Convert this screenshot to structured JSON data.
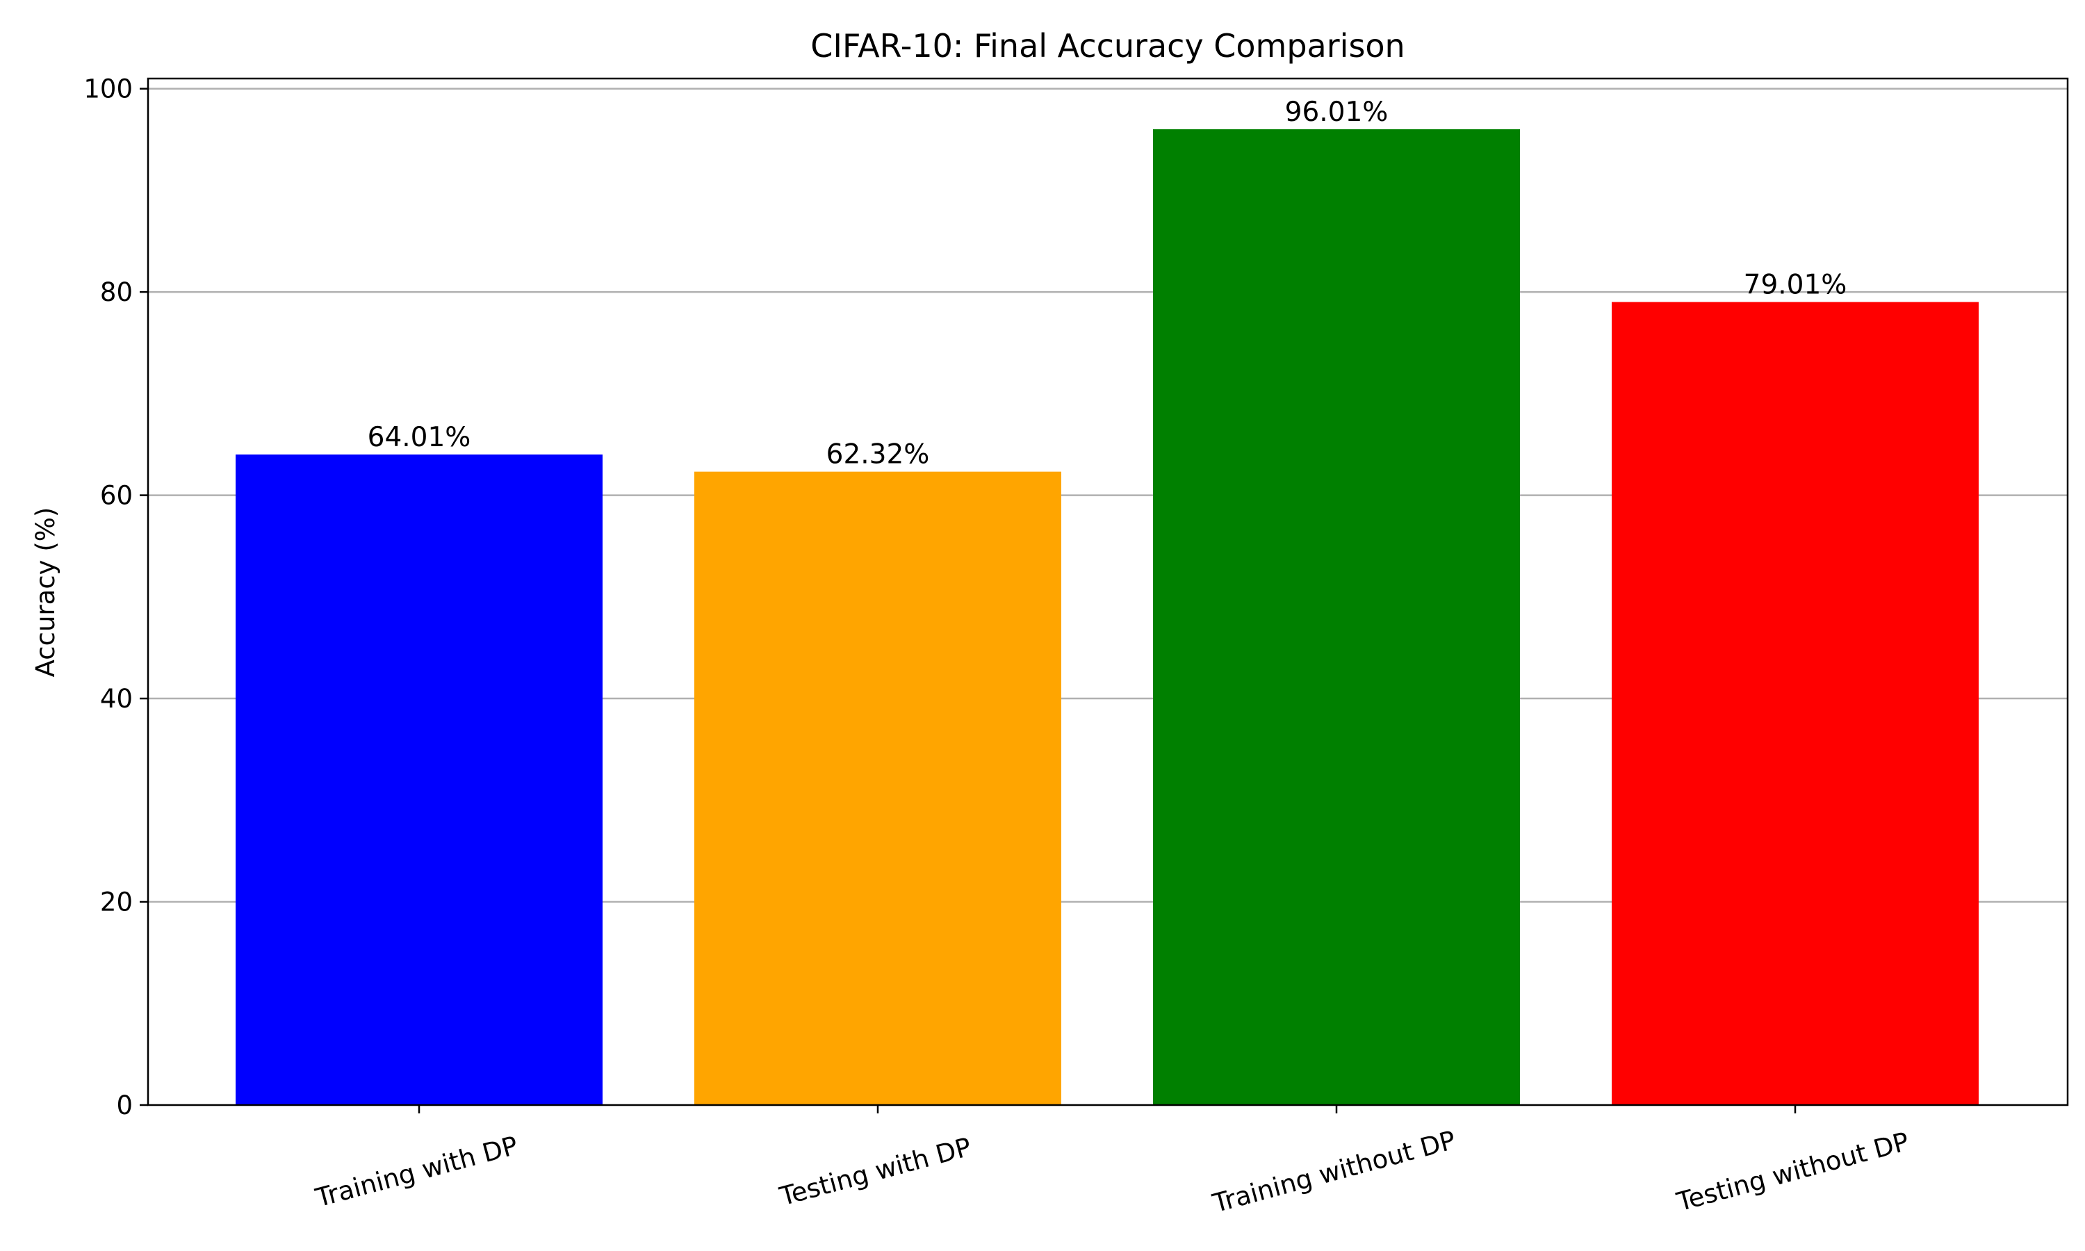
{
  "chart_data": {
    "type": "bar",
    "title": "CIFAR-10: Final Accuracy Comparison",
    "xlabel": "",
    "ylabel": "Accuracy (%)",
    "ylim": [
      0,
      101
    ],
    "yticks": [
      0,
      20,
      40,
      60,
      80,
      100
    ],
    "grid": "y",
    "categories": [
      "Training with DP",
      "Testing with DP",
      "Training without DP",
      "Testing without DP"
    ],
    "values": [
      64.01,
      62.32,
      96.01,
      79.01
    ],
    "data_labels": [
      "64.01%",
      "62.32%",
      "96.01%",
      "79.01%"
    ],
    "colors": [
      "#0000ff",
      "#ffa500",
      "#008000",
      "#ff0000"
    ],
    "xtick_rotation_deg": 15
  }
}
